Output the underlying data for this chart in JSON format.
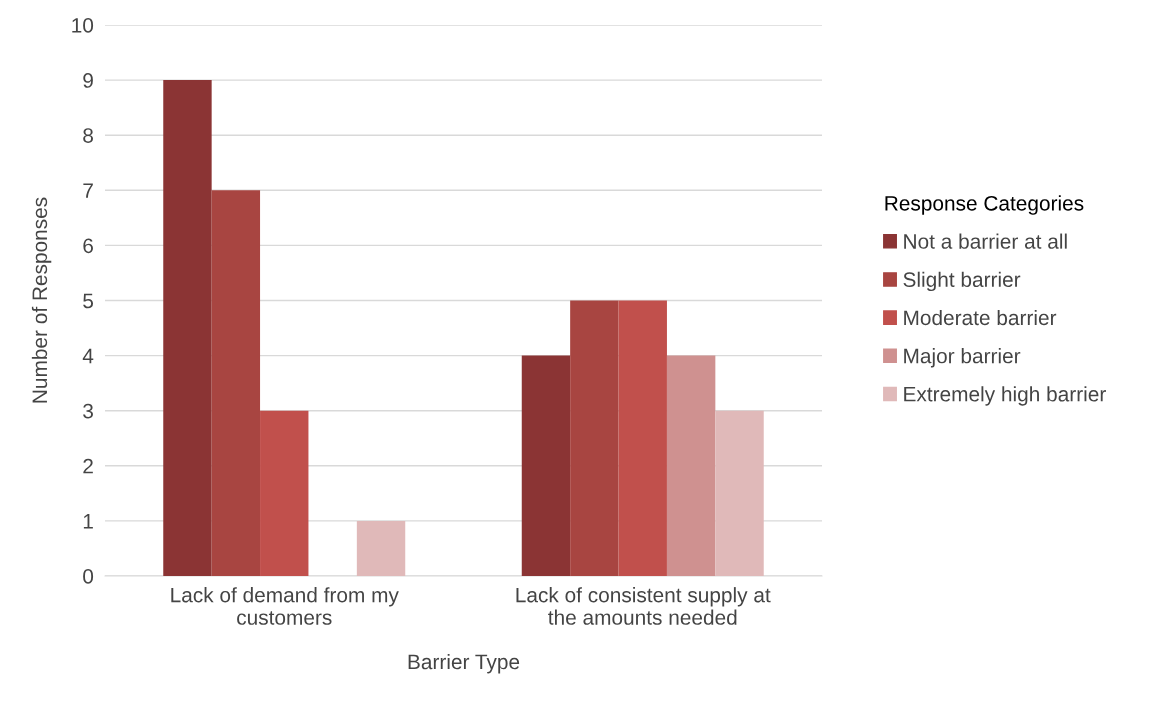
{
  "chart_data": {
    "type": "bar",
    "xlabel": "Barrier Type",
    "ylabel": "Number of Responses",
    "legend_title": "Response Categories",
    "categories": [
      "Lack of demand from my\ncustomers",
      "Lack of consistent supply at\nthe amounts needed"
    ],
    "series": [
      {
        "name": "Not a barrier at all",
        "color": "#8b3434",
        "values": [
          9,
          4
        ]
      },
      {
        "name": "Slight barrier",
        "color": "#a84541",
        "values": [
          7,
          5
        ]
      },
      {
        "name": "Moderate barrier",
        "color": "#c1504c",
        "values": [
          3,
          5
        ]
      },
      {
        "name": "Major barrier",
        "color": "#cf9190",
        "values": [
          0,
          4
        ]
      },
      {
        "name": "Extremely high barrier",
        "color": "#e0b9b9",
        "values": [
          1,
          3
        ]
      }
    ],
    "ylim": [
      0,
      10
    ],
    "yticks": [
      0,
      1,
      2,
      3,
      4,
      5,
      6,
      7,
      8,
      9,
      10
    ],
    "grid": "y",
    "legend": "right"
  }
}
